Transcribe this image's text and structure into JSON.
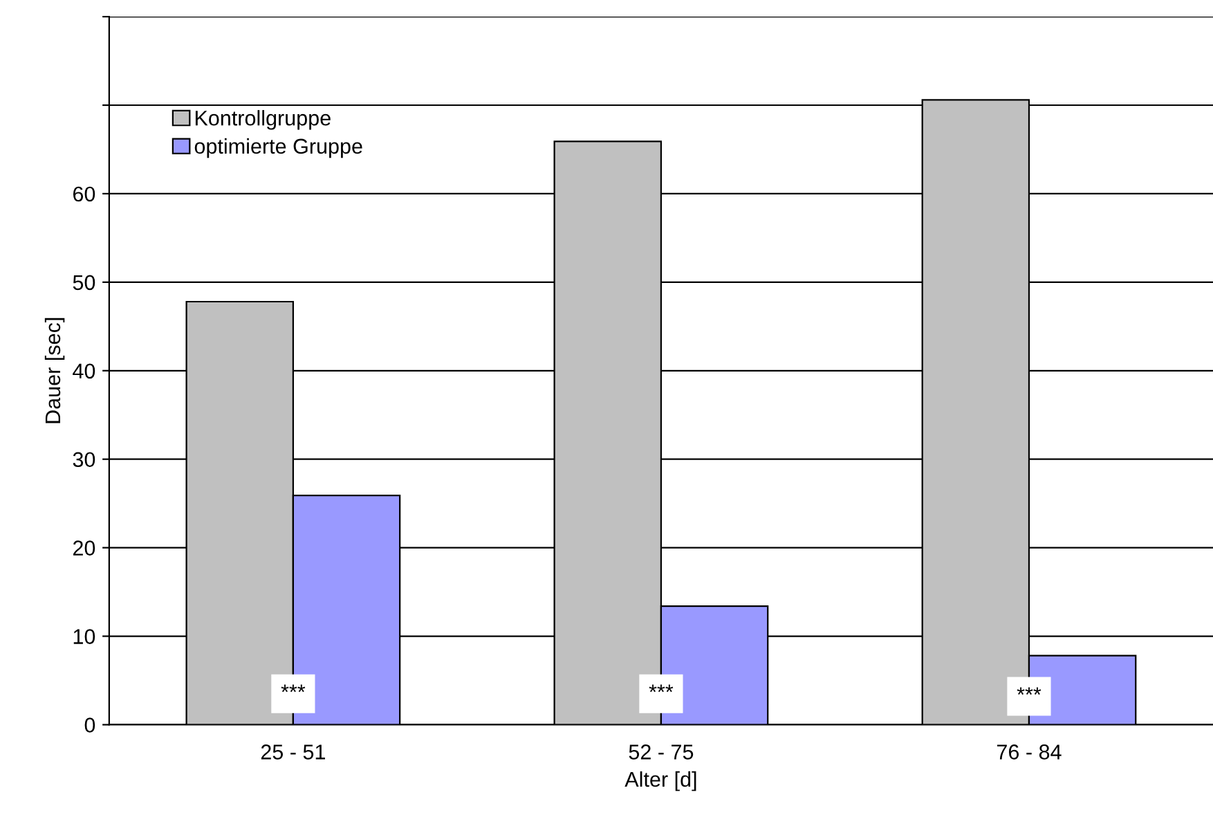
{
  "chart_data": {
    "type": "bar",
    "xlabel": "Alter [d]",
    "ylabel": "Dauer [sec]",
    "categories": [
      "25 - 51",
      "52 - 75",
      "76 - 84"
    ],
    "series": [
      {
        "name": "Kontrollgruppe",
        "color": "#c0c0c0",
        "values": [
          47.8,
          65.9,
          70.6
        ]
      },
      {
        "name": "optimierte Gruppe",
        "color": "#9999ff",
        "values": [
          25.9,
          13.4,
          7.8
        ]
      }
    ],
    "ylim": [
      0,
      80
    ],
    "yticks": [
      0,
      10,
      20,
      30,
      40,
      50,
      60,
      {
        "value": 70,
        "label": null
      },
      {
        "value": 80,
        "label": null
      }
    ],
    "grid": "y",
    "legend": "top left",
    "annotations": [
      {
        "text": "***",
        "x": "25 - 51",
        "y": 3.5
      },
      {
        "text": "***",
        "x": "52 - 75",
        "y": 3.5
      },
      {
        "text": "***",
        "x": "76 - 84",
        "y": 3.2
      }
    ]
  }
}
